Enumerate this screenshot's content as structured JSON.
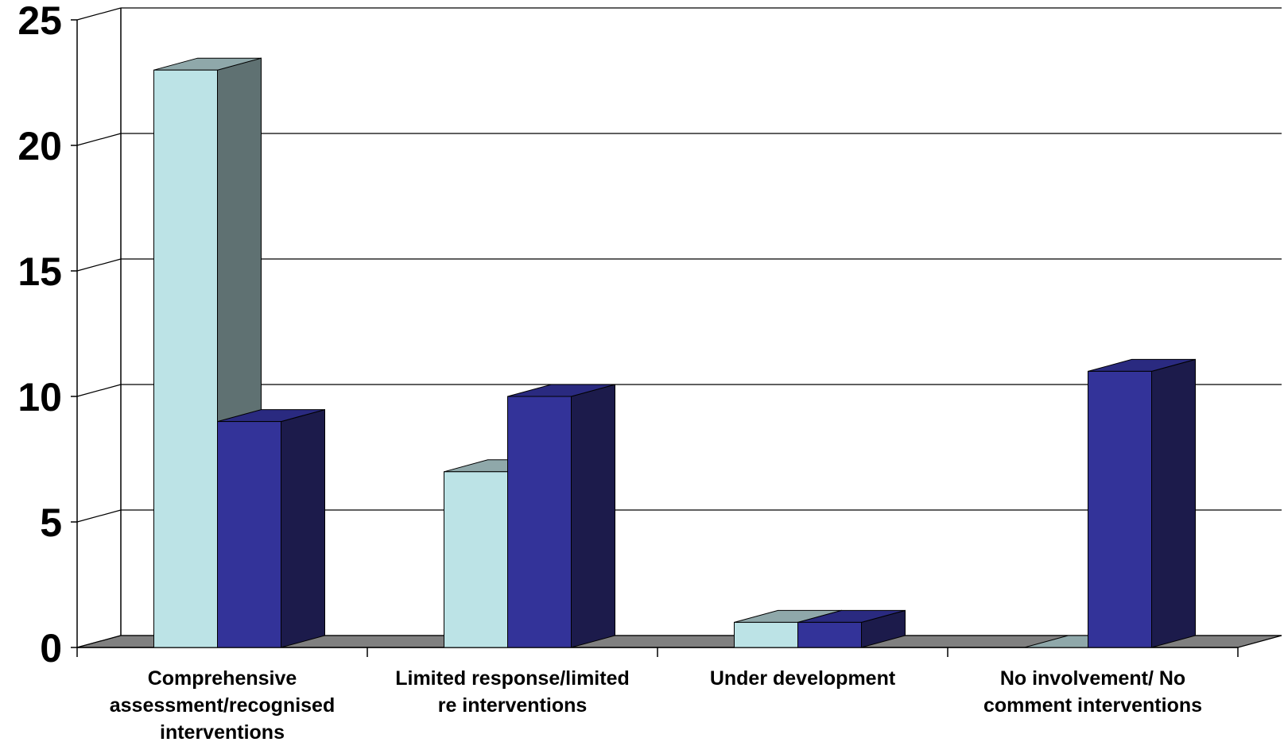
{
  "chart_data": {
    "type": "bar",
    "style": "3d-clustered-column",
    "title": "",
    "xlabel": "",
    "ylabel": "",
    "ylim": [
      0,
      25
    ],
    "yticks": [
      "0",
      "5",
      "10",
      "15",
      "20",
      "25"
    ],
    "categories": [
      [
        "Comprehensive",
        "assessment/recognised",
        "interventions"
      ],
      [
        "Limited response/limited",
        "re interventions"
      ],
      [
        "Under development"
      ],
      [
        "No involvement/ No",
        "comment interventions"
      ]
    ],
    "series": [
      {
        "values": [
          23,
          7,
          1,
          0
        ],
        "color": "#bce3e6",
        "top_color": "#8fa8aa",
        "side_color": "#5f7172"
      },
      {
        "values": [
          9,
          10,
          1,
          11
        ],
        "color": "#333399",
        "top_color": "#2a2a80",
        "side_color": "#1c1b4b"
      }
    ],
    "grid": true,
    "legend": "none",
    "colors": {
      "floor": "#808080",
      "gridline": "#000000"
    }
  }
}
